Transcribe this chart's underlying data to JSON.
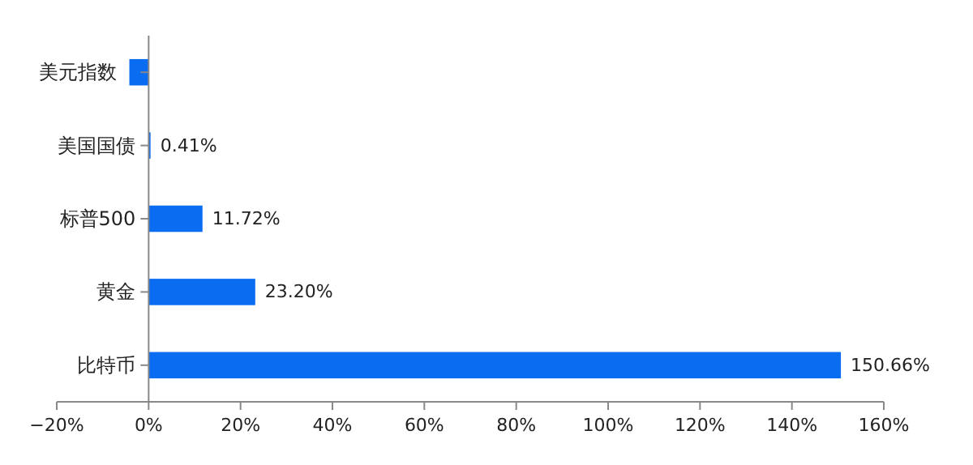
{
  "chart_data": {
    "type": "bar",
    "orientation": "horizontal",
    "categories": [
      "美元指数",
      "美国国债",
      "标普500",
      "黄金",
      "比特币"
    ],
    "values": [
      -4.2,
      0.41,
      11.72,
      23.2,
      150.66
    ],
    "color": "#0a6cf0",
    "value_labels": [
      null,
      "0.41%",
      "11.72%",
      "23.20%",
      "150.66%"
    ],
    "xlim": [
      -20,
      160
    ],
    "xticks": [
      {
        "value": -20,
        "label": "−20%"
      },
      {
        "value": 0,
        "label": "0%"
      },
      {
        "value": 20,
        "label": "20%"
      },
      {
        "value": 40,
        "label": "40%"
      },
      {
        "value": 60,
        "label": "60%"
      },
      {
        "value": 80,
        "label": "80%"
      },
      {
        "value": 100,
        "label": "100%"
      },
      {
        "value": 120,
        "label": "120%"
      },
      {
        "value": 140,
        "label": "140%"
      },
      {
        "value": 160,
        "label": "160%"
      }
    ],
    "grid": false
  }
}
